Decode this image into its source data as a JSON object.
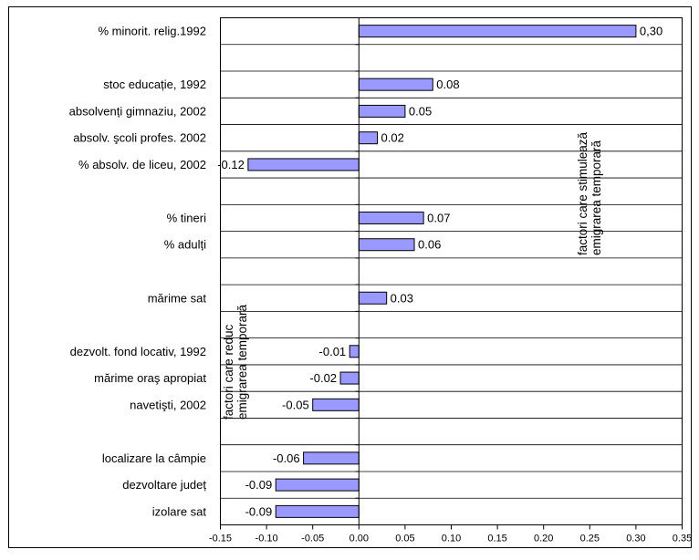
{
  "chart_data": {
    "type": "bar",
    "orientation": "horizontal",
    "title": "",
    "xlabel": "",
    "ylabel": "",
    "xlim": [
      -0.15,
      0.35
    ],
    "x_ticks": [
      "-0.15",
      "-0.10",
      "-0.05",
      "0.00",
      "0.05",
      "0.10",
      "0.15",
      "0.20",
      "0.25",
      "0.30",
      "0.35"
    ],
    "grid": "horizontal lines between categories",
    "bar_color": "#9999ff",
    "rows": [
      {
        "label": "% minorit. relig.1992",
        "value": 0.3,
        "value_label": "0,30"
      },
      {
        "label": "",
        "value": null,
        "value_label": ""
      },
      {
        "label": "stoc educație, 1992",
        "value": 0.08,
        "value_label": "0.08"
      },
      {
        "label": "absolvenți gimnaziu, 2002",
        "value": 0.05,
        "value_label": "0.05"
      },
      {
        "label": "absolv. şcoli profes. 2002",
        "value": 0.02,
        "value_label": "0.02"
      },
      {
        "label": "% absolv. de liceu, 2002",
        "value": -0.12,
        "value_label": "-0.12"
      },
      {
        "label": "",
        "value": null,
        "value_label": ""
      },
      {
        "label": "% tineri",
        "value": 0.07,
        "value_label": "0.07"
      },
      {
        "label": "% adulți",
        "value": 0.06,
        "value_label": "0.06"
      },
      {
        "label": "",
        "value": null,
        "value_label": ""
      },
      {
        "label": "mărime sat",
        "value": 0.03,
        "value_label": "0.03"
      },
      {
        "label": "",
        "value": null,
        "value_label": ""
      },
      {
        "label": "dezvolt. fond locativ, 1992",
        "value": -0.01,
        "value_label": "-0.01"
      },
      {
        "label": "mărime oraş apropiat",
        "value": -0.02,
        "value_label": "-0.02"
      },
      {
        "label": "navetişti, 2002",
        "value": -0.05,
        "value_label": "-0.05"
      },
      {
        "label": "",
        "value": null,
        "value_label": ""
      },
      {
        "label": "localizare la câmpie",
        "value": -0.06,
        "value_label": "-0.06"
      },
      {
        "label": "dezvoltare județ",
        "value": -0.09,
        "value_label": "-0.09"
      },
      {
        "label": "izolare sat",
        "value": -0.09,
        "value_label": "-0.09"
      }
    ],
    "annotations": [
      {
        "lines": [
          "factori care stimulează",
          "emigrarea temporară"
        ],
        "side": "positive",
        "rotation": "vertical"
      },
      {
        "lines": [
          "factori care reduc",
          "emigrarea temporară"
        ],
        "side": "negative",
        "rotation": "vertical"
      }
    ]
  }
}
